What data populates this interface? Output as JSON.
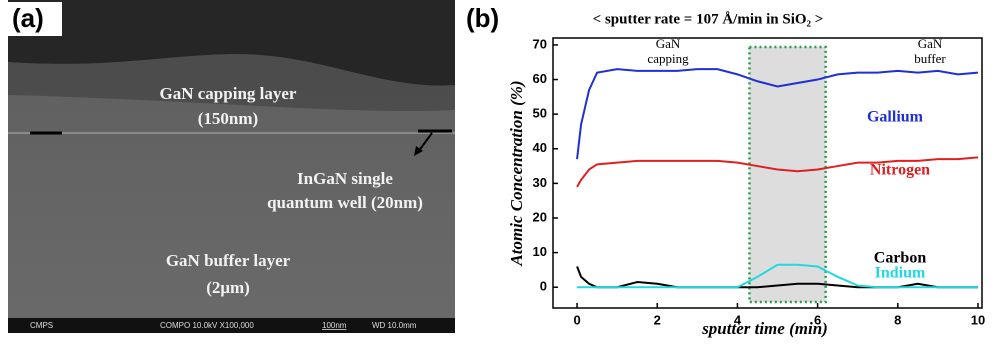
{
  "panel_a": {
    "label": "(a)",
    "texts": [
      "GaN capping layer",
      "(150nm)",
      "InGaN single",
      "quantum well (20nm)",
      "GaN buffer layer",
      "(2μm)"
    ],
    "info_bar": [
      "CMPS",
      "COMPO  10.0kV  X100,000",
      "100nm",
      "WD 10.0mm"
    ]
  },
  "chart_data": {
    "type": "line",
    "label": "(b)",
    "title": "< sputter rate = 107 Å/min in SiO₂ >",
    "x_label": "sputter time (min)",
    "y_label": "Atomic Concentration (%)",
    "annotations": [
      [
        "GaN",
        "capping"
      ],
      [
        "GaN",
        "buffer"
      ]
    ],
    "shaded_range": [
      4.3,
      6.2
    ],
    "x": [
      0,
      0.1,
      0.3,
      0.5,
      1,
      1.5,
      2,
      2.5,
      3,
      3.5,
      4,
      4.5,
      5,
      5.5,
      6,
      6.5,
      7,
      7.5,
      8,
      8.5,
      9,
      9.5,
      10
    ],
    "series": [
      {
        "name": "Gallium",
        "color": "#1f2fd6",
        "values": [
          37,
          47,
          57,
          62,
          63,
          62.5,
          62.5,
          62.5,
          63,
          63,
          61.5,
          59.5,
          58,
          59,
          60,
          61.5,
          62,
          62,
          62.5,
          62,
          62.5,
          61.5,
          62
        ]
      },
      {
        "name": "Nitrogen",
        "color": "#e02020",
        "values": [
          29,
          31,
          34,
          35.5,
          36,
          36.5,
          36.5,
          36.5,
          36.5,
          36.5,
          36,
          35,
          34,
          33.5,
          34,
          35,
          36,
          36,
          36.5,
          36.5,
          37,
          37,
          37.5
        ]
      },
      {
        "name": "Carbon",
        "color": "#000000",
        "values": [
          6,
          3,
          1,
          0,
          0,
          1.5,
          1,
          0,
          0,
          0,
          0,
          0,
          0.5,
          1,
          1,
          0.5,
          0,
          0,
          0,
          1,
          0,
          0,
          0
        ]
      },
      {
        "name": "Indium",
        "color": "#22d8e0",
        "values": [
          0,
          0,
          0,
          0,
          0,
          0,
          0,
          0,
          0,
          0,
          0,
          3,
          6.5,
          6.5,
          6,
          3,
          0.5,
          0,
          0,
          0,
          0,
          0,
          0
        ]
      }
    ],
    "xlim": [
      -0.6,
      10.1
    ],
    "ylim": [
      -6,
      72
    ],
    "xticks": [
      0,
      2,
      4,
      6,
      8,
      10
    ],
    "yticks": [
      0,
      10,
      20,
      30,
      40,
      50,
      60,
      70
    ]
  }
}
